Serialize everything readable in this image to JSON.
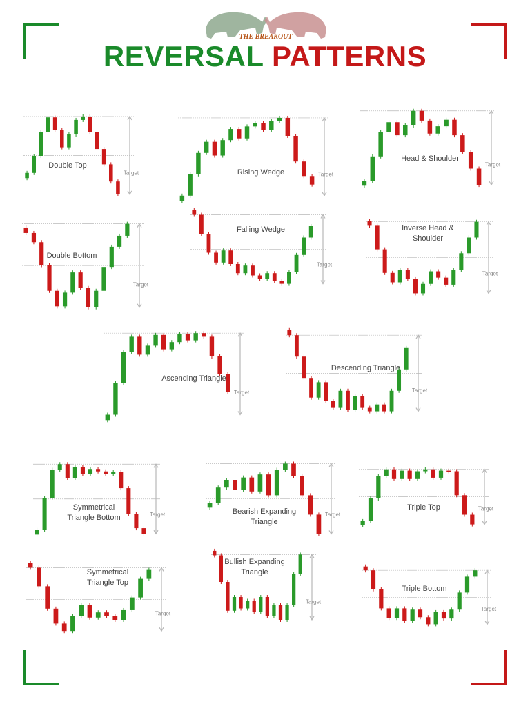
{
  "header": {
    "logo_text": "THE BREAKOUT",
    "title_green": "REVERSAL",
    "title_red": "PATTERNS"
  },
  "colors": {
    "bull": "#2a9a2a",
    "bear": "#cc1a1a",
    "accent_green": "#1a8a2a",
    "accent_red": "#c41818",
    "guide": "#b8b8b8"
  },
  "chart_data": [
    {
      "type": "candlestick",
      "title": "Double Top",
      "target_label": "Target",
      "prices": [
        30,
        50,
        78,
        95,
        80,
        60,
        75,
        92,
        96,
        78,
        58,
        40,
        20,
        5
      ]
    },
    {
      "type": "candlestick",
      "title": "Rising Wedge",
      "target_label": "Target",
      "prices": [
        5,
        30,
        55,
        68,
        52,
        70,
        83,
        72,
        86,
        90,
        82,
        92,
        96,
        75,
        45,
        28,
        18
      ]
    },
    {
      "type": "candlestick",
      "title": "Head & Shoulder",
      "target_label": "Target",
      "prices": [
        10,
        40,
        70,
        82,
        66,
        78,
        96,
        84,
        68,
        77,
        85,
        66,
        45,
        25,
        5
      ]
    },
    {
      "type": "candlestick",
      "title": "Double Bottom",
      "target_label": "Target",
      "prices": [
        85,
        75,
        50,
        22,
        5,
        20,
        42,
        25,
        4,
        22,
        48,
        70,
        82,
        95
      ]
    },
    {
      "type": "candlestick",
      "title": "Falling Wedge",
      "target_label": "Target",
      "prices": [
        95,
        70,
        45,
        32,
        48,
        30,
        18,
        28,
        15,
        10,
        18,
        8,
        4,
        20,
        42,
        65,
        80
      ]
    },
    {
      "type": "candlestick",
      "title": "Inverse Head & Shoulder",
      "target_label": "Target",
      "prices": [
        90,
        60,
        30,
        18,
        34,
        22,
        4,
        16,
        32,
        24,
        15,
        34,
        55,
        75,
        95
      ]
    },
    {
      "type": "candlestick",
      "title": "Ascending Triangle",
      "target_label": "Target",
      "prices": [
        5,
        40,
        75,
        92,
        72,
        82,
        94,
        78,
        86,
        95,
        88,
        96,
        92,
        70,
        50,
        30
      ]
    },
    {
      "type": "candlestick",
      "title": "Descending Triangle",
      "target_label": "Target",
      "prices": [
        95,
        70,
        45,
        22,
        40,
        18,
        10,
        30,
        8,
        24,
        10,
        6,
        14,
        6,
        30,
        55,
        80
      ]
    },
    {
      "type": "candlestick",
      "title": "Symmetrical Triangle Bottom",
      "target_label": "Target",
      "prices": [
        10,
        50,
        85,
        92,
        75,
        88,
        80,
        86,
        83,
        80,
        82,
        62,
        30,
        12,
        5
      ]
    },
    {
      "type": "candlestick",
      "title": "Bearish Expanding Triangle",
      "target_label": "Target",
      "prices": [
        45,
        65,
        75,
        62,
        78,
        60,
        82,
        55,
        88,
        96,
        80,
        55,
        30,
        5
      ]
    },
    {
      "type": "candlestick",
      "title": "Triple Top",
      "target_label": "Target",
      "prices": [
        15,
        50,
        85,
        95,
        80,
        93,
        80,
        92,
        95,
        82,
        93,
        92,
        55,
        25,
        10
      ]
    },
    {
      "type": "candlestick",
      "title": "Symmetrical Triangle Top",
      "target_label": "Target",
      "prices": [
        95,
        70,
        40,
        20,
        10,
        30,
        45,
        28,
        35,
        30,
        25,
        38,
        55,
        80,
        92
      ]
    },
    {
      "type": "candlestick",
      "title": "Bullish Expanding Triangle",
      "target_label": "Target",
      "prices": [
        95,
        60,
        22,
        40,
        25,
        35,
        20,
        40,
        15,
        30,
        10,
        30,
        70,
        96
      ]
    },
    {
      "type": "candlestick",
      "title": "Triple Bottom",
      "target_label": "Target",
      "prices": [
        90,
        60,
        30,
        15,
        30,
        10,
        28,
        16,
        5,
        24,
        14,
        28,
        55,
        80,
        90
      ]
    }
  ]
}
